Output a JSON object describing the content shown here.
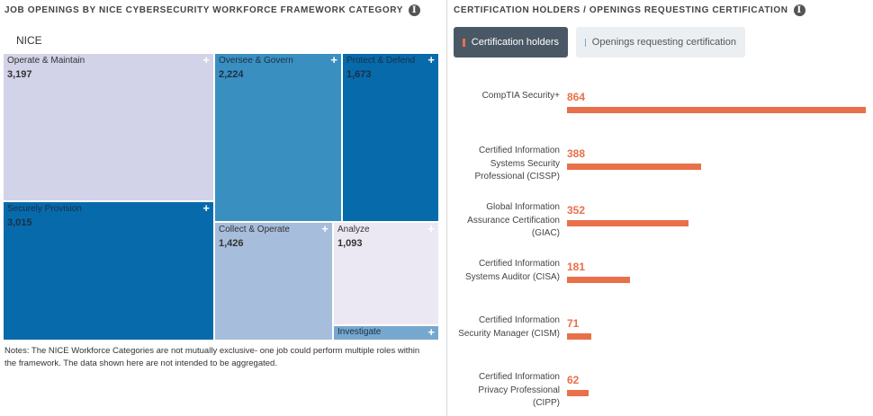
{
  "left_panel": {
    "title": "Job Openings by NICE Cybersecurity Workforce Framework Category",
    "info_icon": "info-icon",
    "root_label": "NICE",
    "notes": "Notes: The NICE Workforce Categories are not mutually exclusive- one job could perform multiple roles within the framework. The data shown here are not intended to be aggregated."
  },
  "right_panel": {
    "title": "Certification Holders / Openings Requesting Certification",
    "info_icon": "info-icon",
    "legend": {
      "holders_label": "Certification holders",
      "openings_label": "Openings requesting certification"
    }
  },
  "colors": {
    "accent": "#e8704a",
    "openings": "#7ba4cf",
    "legend_active_bg": "#4a5865",
    "legend_inactive_bg": "#eceff2"
  },
  "chart_data": [
    {
      "type": "treemap",
      "title": "Job Openings by NICE Cybersecurity Workforce Framework Category",
      "root": "NICE",
      "items": [
        {
          "name": "Operate & Maintain",
          "value": 3197,
          "display": "3,197",
          "color": "#d2d2e8",
          "text_color": "#333333",
          "plus": "+"
        },
        {
          "name": "Securely Provision",
          "value": 3015,
          "display": "3,015",
          "color": "#066aab",
          "text_color": "#1c2f45",
          "plus": "+"
        },
        {
          "name": "Oversee & Govern",
          "value": 2224,
          "display": "2,224",
          "color": "#3a8fc1",
          "text_color": "#1c2f45",
          "plus": "+"
        },
        {
          "name": "Protect & Defend",
          "value": 1673,
          "display": "1,673",
          "color": "#066aab",
          "text_color": "#1c2f45",
          "plus": "+"
        },
        {
          "name": "Collect & Operate",
          "value": 1426,
          "display": "1,426",
          "color": "#a6bddb",
          "text_color": "#333333",
          "plus": "+"
        },
        {
          "name": "Analyze",
          "value": 1093,
          "display": "1,093",
          "color": "#ece8f3",
          "text_color": "#333333",
          "plus": "+"
        },
        {
          "name": "Investigate",
          "value": null,
          "display": "",
          "color": "#76a8cf",
          "text_color": "#1c2f45",
          "plus": "+"
        }
      ]
    },
    {
      "type": "bar",
      "orientation": "horizontal",
      "title": "Certification Holders / Openings Requesting Certification",
      "series": [
        {
          "name": "Certification holders",
          "color": "#e8704a"
        }
      ],
      "categories": [
        "CompTIA Security+",
        "Certified Information Systems Security Professional (CISSP)",
        "Global Information Assurance Certification (GIAC)",
        "Certified Information Systems Auditor (CISA)",
        "Certified Information Security Manager (CISM)",
        "Certified Information Privacy Professional (CIPP)"
      ],
      "values": [
        864,
        388,
        352,
        181,
        71,
        62
      ],
      "xlim": [
        0,
        864
      ]
    }
  ]
}
